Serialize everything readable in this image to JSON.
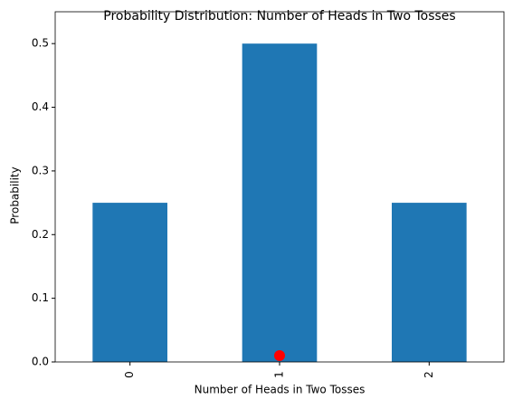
{
  "chart_data": {
    "type": "bar",
    "title": "Probability Distribution: Number of Heads in Two Tosses",
    "x_label": "Number of Heads in Two Tosses",
    "y_label": "Probability",
    "categories": [
      "0",
      "1",
      "2"
    ],
    "values": [
      0.25,
      0.5,
      0.25
    ],
    "color": "#1f77b4",
    "ylim": [
      0,
      0.55
    ],
    "yticks": [
      0.0,
      0.1,
      0.2,
      0.3,
      0.4,
      0.5
    ],
    "markers": [
      {
        "x": 1,
        "y": 0.01,
        "color": "#ff0000"
      }
    ],
    "grid": false
  }
}
